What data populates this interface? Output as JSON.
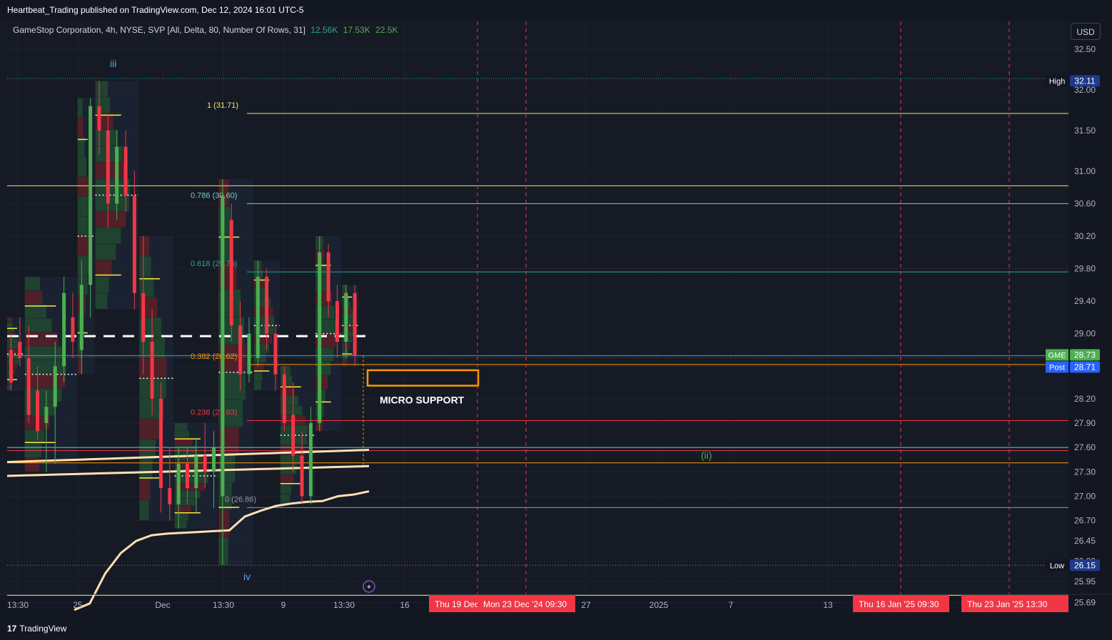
{
  "header": {
    "published": "Heartbeat_Trading published on TradingView.com, Dec 12, 2024 16:01 UTC-5"
  },
  "legend": {
    "title": "GameStop Corporation, 4h, NYSE, SVP [All, Delta, 80, Number Of Rows, 31]",
    "values": [
      "12.56K",
      "17.53K",
      "22.5K"
    ]
  },
  "currency": "USD",
  "footer": {
    "brand": "TradingView"
  },
  "colors": {
    "background": "#131722",
    "up": "#4caf50",
    "down": "#f23645",
    "fib_1": "#f5e663",
    "fib_0786": "#80cbc4",
    "fib_0618": "#26a69a",
    "fib_0382": "#ff9800",
    "fib_0236": "#f23645",
    "fib_0": "#9598a1",
    "moving_average": "#ffe0b2",
    "annotation_box": "#ff9800"
  },
  "chart_data": {
    "type": "candlestick",
    "symbol": "GME",
    "interval": "4h",
    "y_axis": {
      "ylim": [
        25.55,
        32.7
      ],
      "ticks": [
        32.5,
        32.0,
        31.5,
        31.0,
        30.6,
        30.2,
        29.8,
        29.4,
        29.0,
        28.6,
        28.2,
        27.9,
        27.6,
        27.3,
        27.0,
        26.7,
        26.45,
        26.2,
        25.95,
        25.69
      ],
      "tick_labels": [
        "32.50",
        "32.00",
        "31.50",
        "31.00",
        "30.60",
        "30.20",
        "29.80",
        "29.40",
        "29.00",
        "28.60",
        "28.20",
        "27.90",
        "27.60",
        "27.30",
        "27.00",
        "26.70",
        "26.45",
        "26.20",
        "25.95",
        "25.69"
      ]
    },
    "x_axis": {
      "labels": [
        "13:30",
        "25",
        "Dec",
        "13:30",
        "9",
        "13:30",
        "16",
        "27",
        "2025",
        "7",
        "13"
      ]
    },
    "date_markers": [
      {
        "label": "Thu 19 Dec"
      },
      {
        "label": "Mon 23 Dec '24   09:30"
      },
      {
        "label": "Thu 16 Jan '25   09:30"
      },
      {
        "label": "Thu 23 Jan '25   13:30"
      }
    ],
    "price_tags": [
      {
        "name": "High",
        "value": "32.11"
      },
      {
        "name": "GME",
        "value": "28.73"
      },
      {
        "name": "Post",
        "value": "28.71"
      },
      {
        "name": "Low",
        "value": "26.15"
      }
    ],
    "fib_levels": [
      {
        "label": "1 (31.71)",
        "value": 31.71
      },
      {
        "label": "0.786 (30.60)",
        "value": 30.6
      },
      {
        "label": "0.618 (29.76)",
        "value": 29.76
      },
      {
        "label": "0.382 (28.62)",
        "value": 28.62
      },
      {
        "label": "0.236 (27.93)",
        "value": 27.93
      },
      {
        "label": "0 (26.86)",
        "value": 26.86
      }
    ],
    "horizontal_levels": [
      32.14,
      30.82,
      27.6,
      27.56,
      27.41,
      26.15,
      25.78
    ],
    "wave_labels": [
      {
        "text": "iii",
        "value": 32.28
      },
      {
        "text": "iv",
        "value": 25.97
      },
      {
        "text": "(ii)",
        "value": 27.46
      }
    ],
    "annotation": {
      "text": "MICRO SUPPORT",
      "range": [
        28.36,
        28.55
      ]
    },
    "candles": [
      {
        "o": 28.8,
        "h": 29.0,
        "l": 28.3,
        "c": 28.4
      },
      {
        "o": 28.9,
        "h": 29.2,
        "l": 28.6,
        "c": 28.7
      },
      {
        "o": 28.7,
        "h": 29.1,
        "l": 27.9,
        "c": 28.0
      },
      {
        "o": 28.3,
        "h": 28.6,
        "l": 27.7,
        "c": 27.8
      },
      {
        "o": 27.9,
        "h": 28.3,
        "l": 27.3,
        "c": 28.1
      },
      {
        "o": 28.1,
        "h": 28.9,
        "l": 27.4,
        "c": 28.6
      },
      {
        "o": 28.6,
        "h": 29.7,
        "l": 28.4,
        "c": 29.5
      },
      {
        "o": 29.2,
        "h": 29.5,
        "l": 28.7,
        "c": 28.9
      },
      {
        "o": 28.8,
        "h": 29.9,
        "l": 28.5,
        "c": 29.6
      },
      {
        "o": 29.6,
        "h": 31.9,
        "l": 29.2,
        "c": 31.8
      },
      {
        "o": 31.8,
        "h": 32.11,
        "l": 31.2,
        "c": 31.5
      },
      {
        "o": 31.5,
        "h": 31.7,
        "l": 30.3,
        "c": 30.6
      },
      {
        "o": 30.6,
        "h": 31.5,
        "l": 30.4,
        "c": 31.3
      },
      {
        "o": 31.3,
        "h": 31.5,
        "l": 30.5,
        "c": 30.7
      },
      {
        "o": 30.7,
        "h": 31.0,
        "l": 29.3,
        "c": 29.5
      },
      {
        "o": 29.5,
        "h": 30.2,
        "l": 28.5,
        "c": 28.9
      },
      {
        "o": 28.9,
        "h": 29.3,
        "l": 28.0,
        "c": 28.2
      },
      {
        "o": 28.2,
        "h": 28.4,
        "l": 26.8,
        "c": 27.1
      },
      {
        "o": 27.1,
        "h": 27.6,
        "l": 26.7,
        "c": 26.9
      },
      {
        "o": 26.9,
        "h": 27.6,
        "l": 26.6,
        "c": 27.4
      },
      {
        "o": 27.4,
        "h": 27.6,
        "l": 26.9,
        "c": 27.1
      },
      {
        "o": 27.1,
        "h": 27.7,
        "l": 26.8,
        "c": 27.5
      },
      {
        "o": 27.5,
        "h": 27.9,
        "l": 27.1,
        "c": 27.3
      },
      {
        "o": 27.3,
        "h": 27.8,
        "l": 26.85,
        "c": 27.6
      },
      {
        "o": 27.0,
        "h": 30.9,
        "l": 26.15,
        "c": 30.7
      },
      {
        "o": 30.4,
        "h": 30.6,
        "l": 28.9,
        "c": 29.1
      },
      {
        "o": 29.1,
        "h": 29.4,
        "l": 28.3,
        "c": 28.5
      },
      {
        "o": 28.5,
        "h": 29.2,
        "l": 28.4,
        "c": 29.0
      },
      {
        "o": 28.7,
        "h": 29.9,
        "l": 28.6,
        "c": 29.7
      },
      {
        "o": 29.7,
        "h": 29.8,
        "l": 28.8,
        "c": 29.0
      },
      {
        "o": 29.0,
        "h": 29.1,
        "l": 28.3,
        "c": 28.5
      },
      {
        "o": 28.5,
        "h": 28.6,
        "l": 27.8,
        "c": 27.9
      },
      {
        "o": 28.0,
        "h": 28.4,
        "l": 27.3,
        "c": 27.5
      },
      {
        "o": 27.5,
        "h": 27.8,
        "l": 26.9,
        "c": 27.0
      },
      {
        "o": 27.0,
        "h": 28.1,
        "l": 26.9,
        "c": 27.9
      },
      {
        "o": 27.9,
        "h": 30.2,
        "l": 27.8,
        "c": 30.0
      },
      {
        "o": 30.0,
        "h": 30.1,
        "l": 29.2,
        "c": 29.4
      },
      {
        "o": 29.4,
        "h": 29.6,
        "l": 28.7,
        "c": 28.9
      },
      {
        "o": 28.9,
        "h": 29.6,
        "l": 28.7,
        "c": 29.5
      },
      {
        "o": 29.5,
        "h": 29.6,
        "l": 28.6,
        "c": 28.73
      }
    ],
    "moving_average": [
      25.6,
      25.68,
      26.05,
      26.3,
      26.45,
      26.52,
      26.54,
      26.55,
      26.56,
      26.57,
      26.58,
      26.75,
      26.82,
      26.88,
      26.91,
      26.93,
      26.94,
      27.0,
      27.02,
      27.06
    ],
    "volume_profile_poc": [
      28.97,
      28.97,
      28.97,
      28.97,
      28.97,
      28.97,
      28.97
    ]
  }
}
